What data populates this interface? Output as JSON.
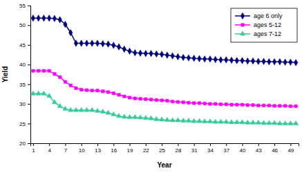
{
  "chart_data": {
    "type": "line",
    "x_label": "Year",
    "y_label": "Yield",
    "x": [
      1,
      2,
      3,
      4,
      5,
      6,
      7,
      8,
      9,
      10,
      11,
      12,
      13,
      14,
      15,
      16,
      17,
      18,
      19,
      20,
      21,
      22,
      23,
      24,
      25,
      26,
      27,
      28,
      29,
      30,
      31,
      32,
      33,
      34,
      35,
      36,
      37,
      38,
      39,
      40,
      41,
      42,
      43,
      44,
      45,
      46,
      47,
      48,
      49,
      50
    ],
    "xlim": [
      0.5,
      50.5
    ],
    "xticks": [
      1,
      4,
      7,
      10,
      13,
      16,
      19,
      22,
      25,
      28,
      31,
      34,
      37,
      40,
      43,
      46,
      49
    ],
    "ylim": [
      20,
      55
    ],
    "yticks": [
      20,
      25,
      30,
      35,
      40,
      45,
      50,
      55
    ],
    "grid": false,
    "legend": "top-right",
    "series": [
      {
        "name": "age 6 only",
        "color": "#000080",
        "marker": "diamond",
        "line_style": "solid",
        "values": [
          51.8,
          51.8,
          51.8,
          51.8,
          51.7,
          51.4,
          50.2,
          48.1,
          45.4,
          45.4,
          45.4,
          45.4,
          45.4,
          45.3,
          45.2,
          44.9,
          44.5,
          43.9,
          43.4,
          43.0,
          42.9,
          42.8,
          42.8,
          42.7,
          42.6,
          42.4,
          42.2,
          42.0,
          41.8,
          41.7,
          41.6,
          41.5,
          41.4,
          41.4,
          41.3,
          41.2,
          41.2,
          41.1,
          41.0,
          41.0,
          40.9,
          40.9,
          40.8,
          40.8,
          40.7,
          40.7,
          40.7,
          40.6,
          40.6,
          40.5
        ]
      },
      {
        "name": "ages 5-12",
        "color": "#ff00ff",
        "marker": "square",
        "line_style": "solid",
        "values": [
          38.4,
          38.4,
          38.4,
          38.4,
          37.6,
          36.8,
          35.6,
          34.7,
          34.0,
          33.6,
          33.5,
          33.4,
          33.4,
          33.2,
          33.0,
          32.7,
          32.3,
          31.9,
          31.6,
          31.4,
          31.3,
          31.2,
          31.1,
          31.0,
          30.9,
          30.8,
          30.6,
          30.5,
          30.4,
          30.3,
          30.2,
          30.2,
          30.1,
          30.0,
          30.0,
          29.9,
          29.9,
          29.8,
          29.8,
          29.8,
          29.7,
          29.7,
          29.6,
          29.6,
          29.6,
          29.5,
          29.5,
          29.5,
          29.4,
          29.4
        ]
      },
      {
        "name": "ages 7-12",
        "color": "#33cc99",
        "marker": "triangle",
        "line_style": "solid",
        "values": [
          32.6,
          32.6,
          32.6,
          32.0,
          30.4,
          29.4,
          28.7,
          28.4,
          28.4,
          28.4,
          28.4,
          28.4,
          28.2,
          28.0,
          27.7,
          27.3,
          26.9,
          26.7,
          26.6,
          26.6,
          26.5,
          26.4,
          26.3,
          26.1,
          26.0,
          25.9,
          25.8,
          25.8,
          25.7,
          25.7,
          25.6,
          25.6,
          25.5,
          25.5,
          25.4,
          25.4,
          25.4,
          25.3,
          25.3,
          25.3,
          25.2,
          25.2,
          25.2,
          25.1,
          25.1,
          25.1,
          25.0,
          25.0,
          25.0,
          25.0
        ]
      }
    ]
  }
}
